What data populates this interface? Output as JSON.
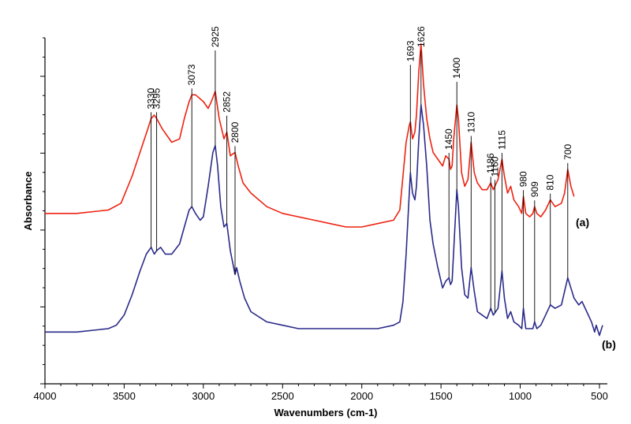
{
  "chart_data": {
    "type": "line",
    "title": "",
    "xlabel": "Wavenumbers (cm-1)",
    "ylabel": "Absorbance",
    "xlim": [
      4000,
      450
    ],
    "x_reversed": true,
    "ylim": [
      0,
      1
    ],
    "y_tick_labels_shown": false,
    "grid": false,
    "x_ticks": [
      4000,
      3500,
      3000,
      2500,
      2000,
      1500,
      1000,
      500
    ],
    "x_tick_labels": [
      "4000",
      "3500",
      "3000",
      "2500",
      "2000",
      "1500",
      "1000",
      "500"
    ],
    "series": [
      {
        "name": "(a)",
        "color": "#ee2211",
        "x": [
          4000,
          3800,
          3600,
          3520,
          3450,
          3400,
          3350,
          3330,
          3310,
          3295,
          3260,
          3200,
          3150,
          3120,
          3090,
          3073,
          3050,
          3000,
          2970,
          2950,
          2925,
          2900,
          2870,
          2852,
          2830,
          2800,
          2780,
          2750,
          2700,
          2600,
          2500,
          2400,
          2300,
          2200,
          2100,
          2000,
          1900,
          1800,
          1760,
          1740,
          1720,
          1700,
          1693,
          1680,
          1665,
          1655,
          1640,
          1626,
          1610,
          1590,
          1570,
          1550,
          1520,
          1490,
          1470,
          1450,
          1440,
          1430,
          1420,
          1400,
          1390,
          1370,
          1350,
          1330,
          1310,
          1290,
          1270,
          1240,
          1210,
          1186,
          1170,
          1140,
          1115,
          1100,
          1080,
          1060,
          1040,
          1010,
          990,
          980,
          965,
          940,
          920,
          909,
          895,
          870,
          840,
          810,
          780,
          740,
          720,
          700,
          680,
          660
        ],
        "y": [
          0.44,
          0.44,
          0.45,
          0.47,
          0.55,
          0.62,
          0.69,
          0.72,
          0.73,
          0.72,
          0.69,
          0.65,
          0.66,
          0.72,
          0.77,
          0.79,
          0.79,
          0.77,
          0.75,
          0.77,
          0.8,
          0.72,
          0.66,
          0.68,
          0.61,
          0.62,
          0.58,
          0.53,
          0.5,
          0.46,
          0.44,
          0.43,
          0.42,
          0.41,
          0.4,
          0.4,
          0.41,
          0.42,
          0.45,
          0.55,
          0.65,
          0.7,
          0.71,
          0.66,
          0.68,
          0.73,
          0.86,
          0.94,
          0.82,
          0.72,
          0.66,
          0.62,
          0.6,
          0.58,
          0.61,
          0.6,
          0.57,
          0.58,
          0.66,
          0.76,
          0.72,
          0.56,
          0.52,
          0.54,
          0.65,
          0.56,
          0.53,
          0.51,
          0.51,
          0.53,
          0.51,
          0.54,
          0.6,
          0.55,
          0.5,
          0.52,
          0.48,
          0.46,
          0.44,
          0.49,
          0.44,
          0.43,
          0.44,
          0.46,
          0.44,
          0.43,
          0.45,
          0.48,
          0.46,
          0.47,
          0.5,
          0.57,
          0.52,
          0.49
        ]
      },
      {
        "name": "(b)",
        "color": "#2a2a8a",
        "x": [
          4000,
          3800,
          3600,
          3550,
          3500,
          3450,
          3400,
          3360,
          3330,
          3310,
          3295,
          3270,
          3240,
          3200,
          3150,
          3120,
          3090,
          3073,
          3050,
          3020,
          3000,
          2970,
          2940,
          2925,
          2910,
          2890,
          2870,
          2852,
          2830,
          2800,
          2790,
          2770,
          2740,
          2700,
          2600,
          2500,
          2400,
          2300,
          2200,
          2100,
          2000,
          1900,
          1800,
          1760,
          1740,
          1720,
          1700,
          1693,
          1680,
          1665,
          1655,
          1640,
          1626,
          1610,
          1590,
          1570,
          1550,
          1520,
          1490,
          1470,
          1450,
          1440,
          1430,
          1420,
          1400,
          1390,
          1370,
          1350,
          1330,
          1310,
          1290,
          1270,
          1240,
          1210,
          1186,
          1170,
          1140,
          1115,
          1100,
          1080,
          1060,
          1040,
          1010,
          990,
          980,
          965,
          940,
          920,
          909,
          895,
          870,
          840,
          810,
          780,
          740,
          720,
          700,
          680,
          660,
          630,
          610,
          580,
          550,
          530,
          520,
          500,
          480
        ],
        "y": [
          0.09,
          0.09,
          0.1,
          0.11,
          0.14,
          0.2,
          0.27,
          0.32,
          0.34,
          0.32,
          0.33,
          0.34,
          0.32,
          0.32,
          0.35,
          0.4,
          0.45,
          0.46,
          0.44,
          0.42,
          0.43,
          0.52,
          0.62,
          0.64,
          0.58,
          0.46,
          0.4,
          0.41,
          0.33,
          0.26,
          0.28,
          0.24,
          0.19,
          0.15,
          0.12,
          0.11,
          0.1,
          0.1,
          0.1,
          0.1,
          0.1,
          0.1,
          0.11,
          0.12,
          0.18,
          0.32,
          0.5,
          0.56,
          0.5,
          0.48,
          0.52,
          0.66,
          0.76,
          0.7,
          0.58,
          0.42,
          0.35,
          0.28,
          0.22,
          0.24,
          0.25,
          0.23,
          0.24,
          0.33,
          0.51,
          0.46,
          0.28,
          0.2,
          0.19,
          0.28,
          0.21,
          0.15,
          0.14,
          0.13,
          0.16,
          0.14,
          0.16,
          0.27,
          0.19,
          0.13,
          0.15,
          0.12,
          0.11,
          0.1,
          0.16,
          0.1,
          0.1,
          0.1,
          0.12,
          0.1,
          0.11,
          0.14,
          0.17,
          0.16,
          0.17,
          0.21,
          0.25,
          0.22,
          0.19,
          0.17,
          0.18,
          0.15,
          0.12,
          0.09,
          0.11,
          0.08,
          0.11
        ]
      }
    ],
    "annotations": [
      {
        "label": "3330",
        "x": 3330
      },
      {
        "label": "3295",
        "x": 3295
      },
      {
        "label": "3073",
        "x": 3073
      },
      {
        "label": "2925",
        "x": 2925
      },
      {
        "label": "2852",
        "x": 2852
      },
      {
        "label": "2800",
        "x": 2800
      },
      {
        "label": "1693",
        "x": 1693
      },
      {
        "label": "1626",
        "x": 1626
      },
      {
        "label": "1450",
        "x": 1450
      },
      {
        "label": "1400",
        "x": 1400
      },
      {
        "label": "1310",
        "x": 1310
      },
      {
        "label": "1186",
        "x": 1186
      },
      {
        "label": "1115",
        "x": 1115
      },
      {
        "label": "1160",
        "x": 1160
      },
      {
        "label": "980",
        "x": 980
      },
      {
        "label": "909",
        "x": 909
      },
      {
        "label": "810",
        "x": 810
      },
      {
        "label": "700",
        "x": 700
      }
    ]
  }
}
